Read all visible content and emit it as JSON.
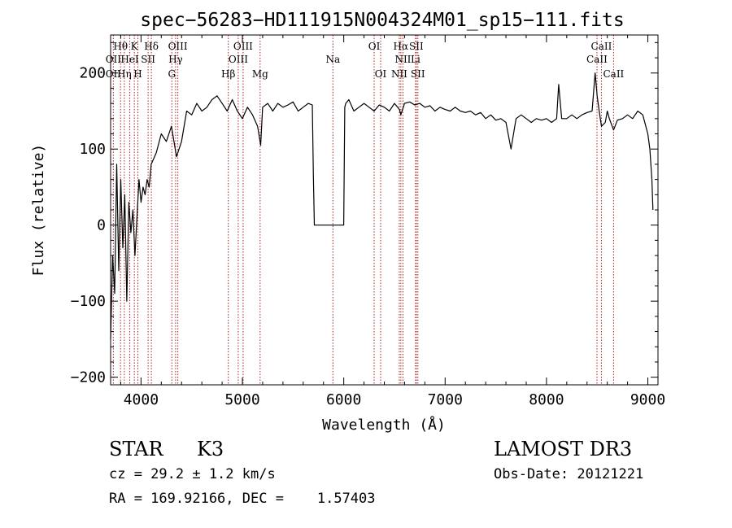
{
  "chart_data": {
    "type": "line",
    "title": "spec−56283−HD111915N004324M01_sp15−111.fits",
    "xlabel": "Wavelength (Å)",
    "ylabel": "Flux (relative)",
    "xlim": [
      3700,
      9100
    ],
    "ylim": [
      -210,
      250
    ],
    "x_ticks": [
      4000,
      5000,
      6000,
      7000,
      8000,
      9000
    ],
    "x_tick_labels": [
      "4000",
      "5000",
      "6000",
      "7000",
      "8000",
      "9000"
    ],
    "y_ticks": [
      -200,
      -100,
      0,
      100,
      200
    ],
    "y_tick_labels": [
      "−200",
      "−100",
      "0",
      "100",
      "200"
    ],
    "series": [
      {
        "name": "spectrum",
        "x": [
          3700,
          3720,
          3740,
          3760,
          3780,
          3800,
          3820,
          3840,
          3860,
          3880,
          3900,
          3920,
          3940,
          3960,
          3980,
          4000,
          4020,
          4040,
          4060,
          4080,
          4100,
          4150,
          4200,
          4250,
          4300,
          4350,
          4400,
          4450,
          4500,
          4550,
          4600,
          4650,
          4700,
          4750,
          4800,
          4850,
          4900,
          4950,
          5000,
          5050,
          5100,
          5150,
          5180,
          5200,
          5250,
          5300,
          5350,
          5400,
          5450,
          5500,
          5550,
          5600,
          5650,
          5690,
          5700,
          5710,
          6000,
          6010,
          6020,
          6050,
          6100,
          6150,
          6200,
          6250,
          6300,
          6350,
          6400,
          6450,
          6500,
          6550,
          6563,
          6600,
          6650,
          6700,
          6750,
          6800,
          6850,
          6900,
          6950,
          7000,
          7050,
          7100,
          7150,
          7200,
          7250,
          7300,
          7350,
          7400,
          7450,
          7500,
          7550,
          7600,
          7650,
          7700,
          7750,
          7800,
          7850,
          7900,
          7950,
          8000,
          8050,
          8100,
          8120,
          8150,
          8200,
          8250,
          8300,
          8350,
          8400,
          8450,
          8480,
          8500,
          8520,
          8542,
          8580,
          8600,
          8620,
          8662,
          8700,
          8750,
          8800,
          8850,
          8900,
          8950,
          9000,
          9020,
          9040,
          9050
        ],
        "y": [
          -150,
          -40,
          -90,
          80,
          -60,
          60,
          -30,
          40,
          -100,
          30,
          -10,
          20,
          -40,
          10,
          60,
          30,
          50,
          40,
          60,
          50,
          80,
          95,
          120,
          110,
          130,
          90,
          110,
          150,
          145,
          160,
          150,
          155,
          165,
          170,
          160,
          150,
          165,
          150,
          140,
          155,
          145,
          130,
          105,
          155,
          160,
          150,
          160,
          155,
          158,
          162,
          150,
          155,
          160,
          158,
          65,
          0,
          0,
          155,
          160,
          165,
          150,
          155,
          160,
          155,
          150,
          158,
          155,
          150,
          160,
          152,
          145,
          160,
          162,
          158,
          160,
          155,
          157,
          150,
          155,
          152,
          150,
          155,
          150,
          148,
          150,
          145,
          148,
          140,
          145,
          138,
          140,
          135,
          100,
          140,
          145,
          140,
          135,
          140,
          138,
          140,
          135,
          140,
          185,
          140,
          140,
          145,
          140,
          145,
          148,
          150,
          200,
          170,
          150,
          130,
          135,
          150,
          140,
          125,
          138,
          140,
          145,
          140,
          150,
          145,
          120,
          100,
          60,
          20
        ]
      }
    ],
    "lines": [
      {
        "name": "Hθ",
        "wl": 3798,
        "row": 1
      },
      {
        "name": "OII",
        "wl": 3727,
        "row": 2
      },
      {
        "name": "OII",
        "wl": 3727,
        "row": 3
      },
      {
        "name": "HeI",
        "wl": 3889,
        "row": 2
      },
      {
        "name": "Hη",
        "wl": 3835,
        "row": 3
      },
      {
        "name": "K",
        "wl": 3934,
        "row": 1
      },
      {
        "name": "H",
        "wl": 3969,
        "row": 3
      },
      {
        "name": "SII",
        "wl": 4070,
        "row": 2
      },
      {
        "name": "Hδ",
        "wl": 4102,
        "row": 1
      },
      {
        "name": "OIII",
        "wl": 4363,
        "row": 1
      },
      {
        "name": "Hγ",
        "wl": 4341,
        "row": 2
      },
      {
        "name": "G",
        "wl": 4304,
        "row": 3
      },
      {
        "name": "OIII",
        "wl": 5007,
        "row": 1
      },
      {
        "name": "OIII",
        "wl": 4959,
        "row": 2
      },
      {
        "name": "Hβ",
        "wl": 4861,
        "row": 3
      },
      {
        "name": "Mg",
        "wl": 5175,
        "row": 3
      },
      {
        "name": "Na",
        "wl": 5893,
        "row": 2
      },
      {
        "name": "OI",
        "wl": 6300,
        "row": 1
      },
      {
        "name": "OI",
        "wl": 6364,
        "row": 3
      },
      {
        "name": "Hα",
        "wl": 6563,
        "row": 1
      },
      {
        "name": "SII",
        "wl": 6716,
        "row": 1
      },
      {
        "name": "NII",
        "wl": 6584,
        "row": 2
      },
      {
        "name": "Li",
        "wl": 6708,
        "row": 2
      },
      {
        "name": "NII",
        "wl": 6548,
        "row": 3
      },
      {
        "name": "SII",
        "wl": 6731,
        "row": 3
      },
      {
        "name": "CaII",
        "wl": 8542,
        "row": 1
      },
      {
        "name": "CaII",
        "wl": 8498,
        "row": 2
      },
      {
        "name": "CaII",
        "wl": 8662,
        "row": 3
      }
    ]
  },
  "info": {
    "class": "STAR",
    "subclass": "K3",
    "survey": "LAMOST DR3",
    "cz": "cz = 29.2 ± 1.2 km/s",
    "obs_date": "Obs-Date: 20121221",
    "radec": "RA = 169.92166, DEC =    1.57403"
  },
  "colors": {
    "spectrum": "#000000",
    "line_markers": "#b22222",
    "axes": "#000000"
  }
}
